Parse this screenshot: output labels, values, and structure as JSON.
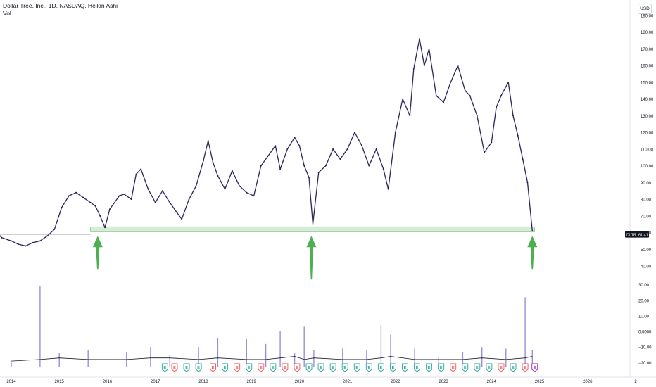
{
  "header": {
    "title": "Dollar Tree, Inc., 1D, NASDAQ, Heikin Ashi",
    "subtitle": "Vol"
  },
  "currency_button": "USD",
  "colors": {
    "price_line": "#1f1f2e",
    "price_accent": "#6a4cc4",
    "support_zone_fill": "#c8e6c9",
    "support_zone_stroke": "#66bb6a",
    "arrow": "#4caf50",
    "volume_bar": "#9c8fd6",
    "volume_ma": "#131722",
    "earnings_green": "#26a69a",
    "earnings_red": "#ef5350",
    "earnings_purple": "#9c27b0",
    "axis_text": "#131722",
    "price_label_bg": "#131722"
  },
  "price_tag": {
    "symbol": "DLTR",
    "value": "61.41"
  },
  "earnings_marker_glyph": "E",
  "chart_data": [
    {
      "type": "line",
      "title": "Dollar Tree, Inc., 1D, NASDAQ, Heikin Ashi",
      "x_labels": [
        "2014",
        "2015",
        "2016",
        "2017",
        "2018",
        "2019",
        "2020",
        "2021",
        "2022",
        "2023",
        "2024",
        "2025",
        "2026",
        "2"
      ],
      "y_ticks": [
        "190.00",
        "180.00",
        "170.00",
        "160.00",
        "150.00",
        "140.00",
        "130.00",
        "120.00",
        "110.00",
        "100.00",
        "90.00",
        "80.00",
        "70.00",
        "60.00",
        "50.00",
        "40.00"
      ],
      "ylim": [
        40,
        190
      ],
      "grid": false,
      "series": [
        {
          "x": [
            2013.55,
            2013.8,
            2014.0,
            2014.15,
            2014.3,
            2014.45,
            2014.6,
            2014.75,
            2014.9,
            2015.05,
            2015.2,
            2015.35,
            2015.5,
            2015.65,
            2015.75,
            2015.85,
            2015.95,
            2016.05,
            2016.25,
            2016.35,
            2016.5,
            2016.6,
            2016.7,
            2016.85,
            2017.0,
            2017.15,
            2017.3,
            2017.45,
            2017.55,
            2017.7,
            2017.85,
            2018.0,
            2018.1,
            2018.2,
            2018.3,
            2018.45,
            2018.6,
            2018.75,
            2018.9,
            2019.05,
            2019.2,
            2019.35,
            2019.5,
            2019.6,
            2019.75,
            2019.9,
            2020.0,
            2020.1,
            2020.2,
            2020.28,
            2020.4,
            2020.55,
            2020.7,
            2020.85,
            2021.0,
            2021.15,
            2021.3,
            2021.45,
            2021.6,
            2021.75,
            2021.85,
            2022.0,
            2022.15,
            2022.3,
            2022.38,
            2022.5,
            2022.6,
            2022.7,
            2022.85,
            2023.0,
            2023.15,
            2023.3,
            2023.45,
            2023.55,
            2023.7,
            2023.85,
            2024.0,
            2024.1,
            2024.2,
            2024.35,
            2024.45,
            2024.55,
            2024.65,
            2024.75,
            2024.85
          ],
          "y": [
            58,
            57,
            55,
            53,
            52,
            54,
            55,
            58,
            62,
            75,
            82,
            84,
            81,
            78,
            76,
            70,
            63,
            74,
            82,
            83,
            80,
            95,
            98,
            86,
            78,
            85,
            78,
            72,
            68,
            80,
            88,
            103,
            115,
            102,
            94,
            86,
            97,
            88,
            84,
            82,
            100,
            106,
            112,
            98,
            110,
            117,
            112,
            100,
            93,
            65,
            96,
            100,
            110,
            104,
            110,
            120,
            112,
            100,
            110,
            98,
            86,
            120,
            140,
            130,
            158,
            176,
            160,
            170,
            142,
            138,
            150,
            160,
            145,
            142,
            130,
            108,
            114,
            135,
            142,
            150,
            130,
            118,
            104,
            90,
            61
          ]
        }
      ],
      "annotations": [
        {
          "type": "support_zone",
          "y_range": [
            60.5,
            63.5
          ],
          "x_range": [
            2015.65,
            2024.9
          ]
        },
        {
          "type": "arrow_up",
          "x": 2015.8,
          "y": 60.5
        },
        {
          "type": "arrow_up",
          "x": 2020.25,
          "y": 60.5
        },
        {
          "type": "arrow_up",
          "x": 2024.85,
          "y": 60.5
        }
      ],
      "last_price": 61.41
    },
    {
      "type": "bar",
      "title": "Vol",
      "y_ticks": [
        "30.00",
        "20.00",
        "10.00",
        "0.0000",
        "−10.00",
        "−20.00"
      ],
      "ylim": [
        -23,
        33
      ],
      "grid": false,
      "x": [
        2014.0,
        2014.6,
        2015.0,
        2015.6,
        2016.4,
        2016.9,
        2017.3,
        2017.9,
        2018.3,
        2018.9,
        2019.3,
        2019.6,
        2019.9,
        2020.1,
        2020.3,
        2020.9,
        2021.4,
        2021.7,
        2021.9,
        2022.4,
        2022.9,
        2023.4,
        2023.8,
        2024.3,
        2024.7,
        2024.85
      ],
      "values": [
        -20,
        29,
        -14,
        -12,
        -13,
        -10,
        -15,
        -10,
        -4,
        -5,
        -8,
        0,
        -14,
        3,
        -12,
        -11,
        -12,
        4,
        -2,
        -11,
        -16,
        -13,
        -10,
        -11,
        22,
        -12
      ],
      "ma": [
        -19,
        -18,
        -17,
        -18,
        -18,
        -17,
        -17,
        -18,
        -17,
        -18,
        -18,
        -17,
        -16,
        -18,
        -17,
        -18,
        -18,
        -17,
        -16,
        -18,
        -18,
        -18,
        -17,
        -18,
        -17,
        -16
      ],
      "earnings_markers": [
        {
          "x": 2017.2,
          "kind": "green"
        },
        {
          "x": 2017.4,
          "kind": "red"
        },
        {
          "x": 2017.65,
          "kind": "green"
        },
        {
          "x": 2017.9,
          "kind": "green"
        },
        {
          "x": 2018.2,
          "kind": "red"
        },
        {
          "x": 2018.45,
          "kind": "green"
        },
        {
          "x": 2018.7,
          "kind": "red"
        },
        {
          "x": 2018.95,
          "kind": "green"
        },
        {
          "x": 2019.2,
          "kind": "red"
        },
        {
          "x": 2019.45,
          "kind": "green"
        },
        {
          "x": 2019.7,
          "kind": "red"
        },
        {
          "x": 2019.95,
          "kind": "red"
        },
        {
          "x": 2020.2,
          "kind": "green"
        },
        {
          "x": 2020.45,
          "kind": "green"
        },
        {
          "x": 2020.7,
          "kind": "green"
        },
        {
          "x": 2020.95,
          "kind": "green"
        },
        {
          "x": 2021.2,
          "kind": "green"
        },
        {
          "x": 2021.45,
          "kind": "green"
        },
        {
          "x": 2021.7,
          "kind": "green"
        },
        {
          "x": 2021.95,
          "kind": "green"
        },
        {
          "x": 2022.2,
          "kind": "green"
        },
        {
          "x": 2022.45,
          "kind": "green"
        },
        {
          "x": 2022.7,
          "kind": "green"
        },
        {
          "x": 2022.95,
          "kind": "green"
        },
        {
          "x": 2023.2,
          "kind": "red"
        },
        {
          "x": 2023.45,
          "kind": "green"
        },
        {
          "x": 2023.7,
          "kind": "green"
        },
        {
          "x": 2023.95,
          "kind": "green"
        },
        {
          "x": 2024.2,
          "kind": "red"
        },
        {
          "x": 2024.45,
          "kind": "green"
        },
        {
          "x": 2024.7,
          "kind": "red"
        },
        {
          "x": 2024.9,
          "kind": "purple"
        }
      ]
    }
  ]
}
